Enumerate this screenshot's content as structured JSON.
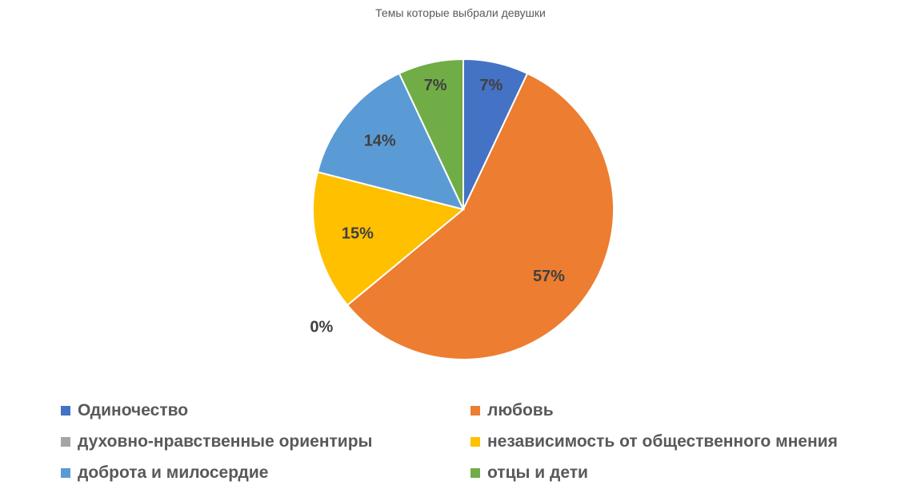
{
  "chart_data": {
    "type": "pie",
    "title": "Темы которые выбрали девушки",
    "categories": [
      "Одиночество",
      "любовь",
      "духовно-нравственные ориентиры",
      "независимость от общественного мнения",
      "доброта и милосердие",
      "отцы и дети"
    ],
    "values": [
      7,
      57,
      0,
      15,
      14,
      7
    ],
    "labels": [
      "7%",
      "57%",
      "0%",
      "15%",
      "14%",
      "7%"
    ],
    "colors": [
      "#4472C4",
      "#ED7D31",
      "#A5A5A5",
      "#FFC000",
      "#5B9BD5",
      "#70AD47"
    ],
    "legend_position": "bottom"
  }
}
